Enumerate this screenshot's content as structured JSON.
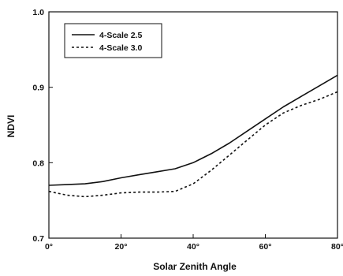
{
  "chart_data": {
    "type": "line",
    "title": "",
    "xlabel": "Solar Zenith Angle",
    "ylabel": "NDVI",
    "xlim": [
      0,
      80
    ],
    "ylim": [
      0.7,
      1.0
    ],
    "x_ticks": [
      {
        "value": 0,
        "label": "0°"
      },
      {
        "value": 20,
        "label": "20°"
      },
      {
        "value": 40,
        "label": "40°"
      },
      {
        "value": 60,
        "label": "60°"
      },
      {
        "value": 80,
        "label": "80°"
      }
    ],
    "y_ticks": [
      {
        "value": 0.7,
        "label": "0.7"
      },
      {
        "value": 0.8,
        "label": "0.8"
      },
      {
        "value": 0.9,
        "label": "0.9"
      },
      {
        "value": 1.0,
        "label": "1.0"
      }
    ],
    "grid": false,
    "legend_position": "top-left",
    "series": [
      {
        "name": "4-Scale 2.5",
        "style": "solid",
        "color": "#111111",
        "x": [
          0,
          5,
          10,
          15,
          20,
          25,
          30,
          35,
          40,
          45,
          50,
          55,
          60,
          65,
          70,
          75,
          80
        ],
        "y": [
          0.77,
          0.771,
          0.772,
          0.775,
          0.78,
          0.784,
          0.788,
          0.792,
          0.8,
          0.812,
          0.826,
          0.842,
          0.858,
          0.874,
          0.888,
          0.902,
          0.916
        ]
      },
      {
        "name": "4-Scale 3.0",
        "style": "dashed",
        "color": "#111111",
        "x": [
          0,
          5,
          10,
          15,
          20,
          25,
          30,
          35,
          40,
          45,
          50,
          55,
          60,
          65,
          70,
          75,
          80
        ],
        "y": [
          0.762,
          0.757,
          0.755,
          0.757,
          0.76,
          0.761,
          0.761,
          0.762,
          0.772,
          0.79,
          0.81,
          0.83,
          0.85,
          0.866,
          0.876,
          0.884,
          0.894
        ]
      }
    ]
  }
}
